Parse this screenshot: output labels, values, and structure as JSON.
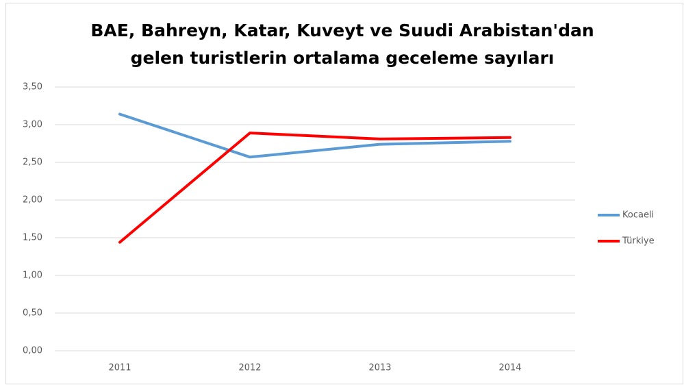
{
  "chart_data": {
    "type": "line",
    "title": [
      "BAE, Bahreyn, Katar, Kuveyt ve Suudi Arabistan'dan",
      "gelen turistlerin ortalama geceleme sayıları"
    ],
    "categories": [
      "2011",
      "2012",
      "2013",
      "2014"
    ],
    "series": [
      {
        "name": "Kocaeli",
        "color": "#5b9bd5",
        "values": [
          3.14,
          2.57,
          2.74,
          2.78
        ]
      },
      {
        "name": "Türkiye",
        "color": "#ff0000",
        "values": [
          1.44,
          2.89,
          2.81,
          2.83
        ]
      }
    ],
    "ylim": [
      0,
      3.5
    ],
    "yticks": [
      {
        "value": 0,
        "label": "0,00"
      },
      {
        "value": 0.5,
        "label": "0,50"
      },
      {
        "value": 1,
        "label": "1,00"
      },
      {
        "value": 1.5,
        "label": "1,50"
      },
      {
        "value": 2,
        "label": "2,00"
      },
      {
        "value": 2.5,
        "label": "2,50"
      },
      {
        "value": 3,
        "label": "3,00"
      },
      {
        "value": 3.5,
        "label": "3,50"
      }
    ],
    "grid": true,
    "legend": "right"
  }
}
